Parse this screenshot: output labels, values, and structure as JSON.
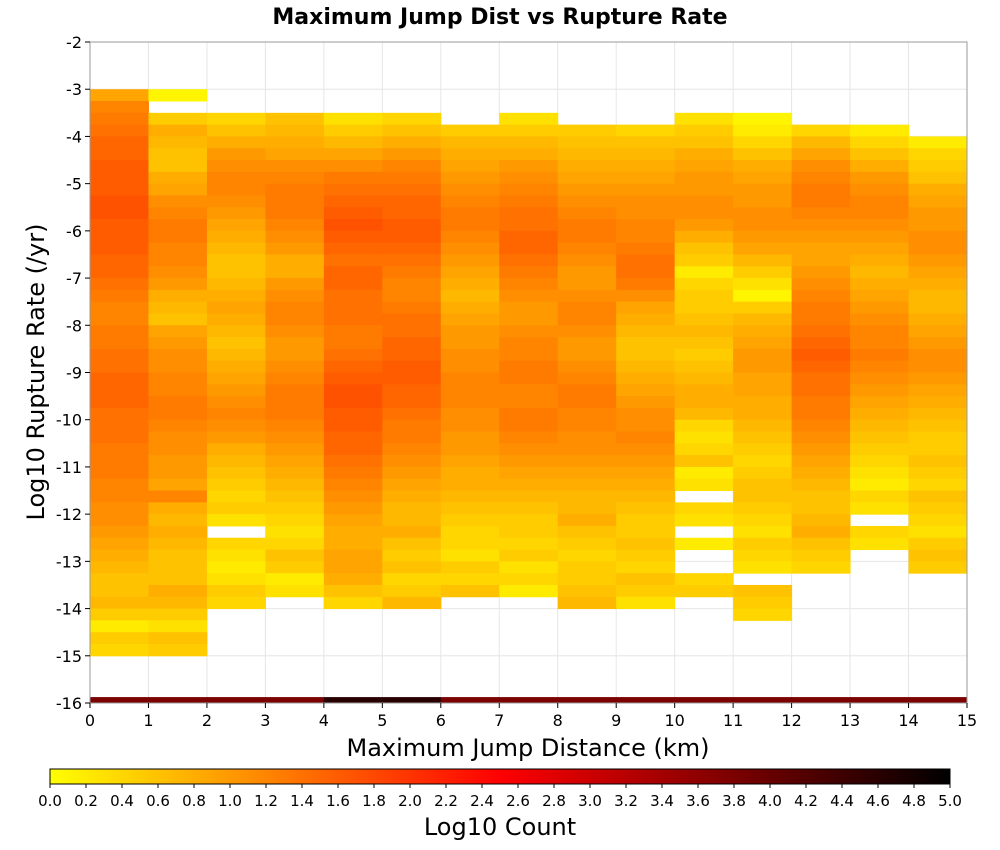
{
  "chart_data": {
    "type": "heatmap",
    "title": "Maximum Jump Dist vs Rupture Rate",
    "xlabel": "Maximum Jump Distance (km)",
    "ylabel": "Log10 Rupture Rate (/yr)",
    "xlim": [
      0,
      15
    ],
    "ylim": [
      -16,
      -2
    ],
    "x_ticks": [
      "0",
      "1",
      "2",
      "3",
      "4",
      "5",
      "6",
      "7",
      "8",
      "9",
      "10",
      "11",
      "12",
      "13",
      "14",
      "15"
    ],
    "y_ticks": [
      "-2",
      "-3",
      "-4",
      "-5",
      "-6",
      "-7",
      "-8",
      "-9",
      "-10",
      "-11",
      "-12",
      "-13",
      "-14",
      "-15",
      "-16"
    ],
    "x_bin_width": 1,
    "y_bin_height": 0.25,
    "colorbar": {
      "label": "Log10 Count",
      "range": [
        0,
        5
      ],
      "ticks": [
        "0.0",
        "0.2",
        "0.4",
        "0.6",
        "0.8",
        "1.0",
        "1.2",
        "1.4",
        "1.6",
        "1.8",
        "2.0",
        "2.2",
        "2.4",
        "2.6",
        "2.8",
        "3.0",
        "3.2",
        "3.4",
        "3.6",
        "3.8",
        "4.0",
        "4.2",
        "4.4",
        "4.6",
        "4.8",
        "5.0"
      ],
      "colors": [
        "#ffff00",
        "#ff8000",
        "#ff0000",
        "#800000",
        "#000000"
      ]
    },
    "columns": [
      {
        "x": 0,
        "min_rate": -3.0,
        "levels": [
          0.9,
          1.2,
          1.3,
          1.4,
          1.5,
          1.5,
          1.6,
          1.6,
          1.6,
          1.7,
          1.7,
          1.6,
          1.6,
          1.6,
          1.5,
          1.5,
          1.4,
          1.3,
          1.2,
          1.2,
          1.3,
          1.3,
          1.4,
          1.4,
          1.5,
          1.5,
          1.5,
          1.4,
          1.4,
          1.4,
          1.3,
          1.3,
          1.3,
          1.2,
          1.2,
          1.1,
          1.1,
          1.0,
          0.9,
          0.8,
          0.7,
          0.6,
          0.6,
          0.7,
          0.5,
          0.2,
          0.5,
          0.4
        ]
      },
      {
        "x": 1,
        "min_rate": -3.0,
        "levels": [
          0.1,
          null,
          0.5,
          0.8,
          0.7,
          0.6,
          0.6,
          0.8,
          0.9,
          1.1,
          1.2,
          1.3,
          1.3,
          1.2,
          1.2,
          1.1,
          1.0,
          0.8,
          0.7,
          0.6,
          0.9,
          1.0,
          1.1,
          1.1,
          1.2,
          1.2,
          1.3,
          1.3,
          1.2,
          1.1,
          1.1,
          1.0,
          1.0,
          0.9,
          1.2,
          0.8,
          0.7,
          0.8,
          0.7,
          0.6,
          0.6,
          0.6,
          0.8,
          0.7,
          0.5,
          0.3,
          0.6,
          0.5
        ]
      },
      {
        "x": 2,
        "min_rate": -3.5,
        "levels": [
          0.4,
          0.6,
          0.8,
          1.0,
          1.1,
          1.2,
          1.2,
          1.1,
          1.0,
          0.9,
          0.8,
          0.7,
          0.6,
          0.6,
          0.7,
          0.8,
          0.9,
          0.8,
          0.7,
          0.6,
          0.7,
          0.8,
          0.9,
          1.0,
          1.1,
          1.2,
          1.1,
          1.0,
          0.8,
          0.7,
          0.6,
          0.5,
          0.4,
          0.5,
          0.3,
          null,
          0.4,
          0.3,
          0.2,
          0.3,
          0.5,
          0.4
        ]
      },
      {
        "x": 3,
        "min_rate": -3.5,
        "levels": [
          0.6,
          0.7,
          0.8,
          0.9,
          1.1,
          1.2,
          1.3,
          1.3,
          1.3,
          1.2,
          1.1,
          1.0,
          0.8,
          0.8,
          1.0,
          1.1,
          1.2,
          1.2,
          1.1,
          1.0,
          1.0,
          1.1,
          1.2,
          1.3,
          1.3,
          1.3,
          1.2,
          1.1,
          1.0,
          0.9,
          0.8,
          0.7,
          0.6,
          0.5,
          0.4,
          0.3,
          0.4,
          0.6,
          0.5,
          0.2,
          0.3,
          null
        ]
      },
      {
        "x": 4,
        "min_rate": -3.5,
        "levels": [
          0.3,
          0.5,
          0.7,
          0.9,
          1.1,
          1.3,
          1.4,
          1.5,
          1.6,
          1.7,
          1.6,
          1.5,
          1.4,
          1.5,
          1.5,
          1.4,
          1.4,
          1.4,
          1.3,
          1.3,
          1.4,
          1.5,
          1.6,
          1.7,
          1.7,
          1.6,
          1.6,
          1.5,
          1.5,
          1.4,
          1.3,
          1.2,
          1.1,
          1.0,
          0.9,
          0.8,
          0.8,
          0.9,
          0.9,
          0.8,
          0.6,
          0.4
        ]
      },
      {
        "x": 5,
        "min_rate": -3.5,
        "levels": [
          0.4,
          0.6,
          0.8,
          1.0,
          1.2,
          1.3,
          1.4,
          1.5,
          1.5,
          1.6,
          1.6,
          1.5,
          1.4,
          1.3,
          1.2,
          1.2,
          1.3,
          1.4,
          1.4,
          1.5,
          1.5,
          1.6,
          1.6,
          1.5,
          1.5,
          1.4,
          1.3,
          1.3,
          1.2,
          1.1,
          1.0,
          0.9,
          0.8,
          0.7,
          0.7,
          0.8,
          0.6,
          0.5,
          0.6,
          0.4,
          0.5,
          0.7
        ]
      },
      {
        "x": 6,
        "min_rate": -3.75,
        "levels": [
          0.5,
          0.7,
          0.8,
          0.9,
          1.0,
          1.1,
          1.2,
          1.3,
          1.3,
          1.2,
          1.1,
          1.0,
          0.9,
          0.8,
          0.7,
          0.8,
          0.9,
          1.0,
          1.0,
          1.1,
          1.1,
          1.2,
          1.2,
          1.2,
          1.1,
          1.1,
          1.0,
          1.0,
          0.9,
          0.8,
          0.8,
          0.7,
          0.6,
          0.5,
          0.4,
          0.4,
          0.3,
          0.5,
          0.4,
          0.6,
          null
        ]
      },
      {
        "x": 7,
        "min_rate": -3.5,
        "levels": [
          0.3,
          0.5,
          0.7,
          0.8,
          1.0,
          1.1,
          1.2,
          1.3,
          1.4,
          1.4,
          1.5,
          1.5,
          1.4,
          1.3,
          1.2,
          1.1,
          1.0,
          1.0,
          1.1,
          1.2,
          1.2,
          1.3,
          1.3,
          1.2,
          1.2,
          1.3,
          1.3,
          1.2,
          1.1,
          1.0,
          0.9,
          0.8,
          0.7,
          0.6,
          0.5,
          0.5,
          0.4,
          0.5,
          0.3,
          0.4,
          0.2,
          null
        ]
      },
      {
        "x": 8,
        "min_rate": -3.75,
        "levels": [
          0.5,
          0.6,
          0.7,
          0.8,
          0.9,
          1.0,
          1.1,
          1.2,
          1.3,
          1.3,
          1.2,
          1.1,
          1.0,
          1.0,
          1.1,
          1.2,
          1.2,
          1.1,
          1.0,
          1.0,
          1.1,
          1.2,
          1.3,
          1.3,
          1.2,
          1.2,
          1.1,
          1.1,
          1.0,
          0.9,
          0.8,
          0.7,
          0.7,
          0.8,
          0.6,
          0.5,
          0.4,
          0.5,
          0.5,
          0.6,
          0.7
        ]
      },
      {
        "x": 9,
        "min_rate": -3.75,
        "levels": [
          0.4,
          0.6,
          0.7,
          0.8,
          0.9,
          1.0,
          1.1,
          1.1,
          1.2,
          1.2,
          1.3,
          1.4,
          1.4,
          1.3,
          1.1,
          0.9,
          0.8,
          0.7,
          0.6,
          0.6,
          0.7,
          0.8,
          0.9,
          1.0,
          1.1,
          1.1,
          1.2,
          1.1,
          1.0,
          0.9,
          0.8,
          0.7,
          0.6,
          0.5,
          0.5,
          0.6,
          0.5,
          0.4,
          0.6,
          0.5,
          0.3
        ]
      },
      {
        "x": 10,
        "min_rate": -3.5,
        "levels": [
          0.3,
          0.5,
          0.6,
          0.8,
          0.9,
          1.0,
          1.0,
          1.1,
          1.1,
          1.0,
          0.8,
          0.6,
          0.5,
          0.2,
          0.4,
          0.5,
          0.5,
          0.6,
          0.7,
          0.6,
          0.5,
          0.6,
          0.7,
          0.8,
          0.8,
          0.7,
          0.4,
          0.3,
          0.4,
          0.6,
          0.2,
          0.3,
          null,
          0.4,
          0.3,
          null,
          0.2,
          null,
          null,
          0.4,
          0.5,
          null
        ]
      },
      {
        "x": 11,
        "min_rate": -3.5,
        "levels": [
          0.1,
          0.2,
          0.4,
          0.6,
          0.8,
          0.9,
          1.0,
          1.0,
          1.1,
          1.1,
          1.0,
          0.9,
          0.7,
          0.5,
          0.3,
          0.1,
          0.5,
          0.7,
          0.8,
          0.9,
          1.0,
          1.0,
          0.9,
          0.9,
          0.8,
          0.8,
          0.7,
          0.6,
          0.5,
          0.4,
          0.5,
          0.6,
          0.6,
          0.5,
          0.4,
          0.3,
          0.5,
          0.4,
          0.3,
          null,
          0.6,
          0.5,
          0.4
        ]
      },
      {
        "x": 12,
        "min_rate": -3.75,
        "levels": [
          0.4,
          0.7,
          0.9,
          1.1,
          1.2,
          1.3,
          1.3,
          1.2,
          1.1,
          1.0,
          0.9,
          0.9,
          1.0,
          1.1,
          1.2,
          1.3,
          1.3,
          1.4,
          1.5,
          1.6,
          1.5,
          1.4,
          1.4,
          1.3,
          1.3,
          1.2,
          1.1,
          1.0,
          0.9,
          0.8,
          0.7,
          0.6,
          0.6,
          0.7,
          0.8,
          0.6,
          0.5,
          0.4
        ]
      },
      {
        "x": 13,
        "min_rate": -3.75,
        "levels": [
          0.2,
          0.4,
          0.6,
          0.8,
          1.0,
          1.1,
          1.2,
          1.2,
          1.1,
          1.0,
          0.9,
          0.8,
          0.7,
          0.8,
          0.9,
          1.0,
          1.1,
          1.2,
          1.2,
          1.3,
          1.2,
          1.1,
          1.0,
          0.9,
          0.8,
          0.7,
          0.6,
          0.5,
          0.4,
          0.3,
          0.2,
          0.4,
          0.3,
          null,
          0.4,
          0.3
        ]
      },
      {
        "x": 14,
        "min_rate": -4.0,
        "levels": [
          0.2,
          0.4,
          0.5,
          0.6,
          0.8,
          0.9,
          1.0,
          1.0,
          1.1,
          1.1,
          1.0,
          0.9,
          0.8,
          0.7,
          0.7,
          0.8,
          0.9,
          1.0,
          1.1,
          1.1,
          1.0,
          0.9,
          0.8,
          0.7,
          0.6,
          0.5,
          0.5,
          0.6,
          0.5,
          0.4,
          0.6,
          0.5,
          0.4,
          0.3,
          0.5,
          0.6,
          0.5
        ]
      }
    ],
    "bottom_band": {
      "rate_range": [
        -16,
        -15.875
      ],
      "values_by_x": [
        3.8,
        3.8,
        3.8,
        3.8,
        4.6,
        4.6,
        3.8,
        3.8,
        3.8,
        3.8,
        3.8,
        3.8,
        3.8,
        3.8,
        3.8
      ]
    }
  }
}
